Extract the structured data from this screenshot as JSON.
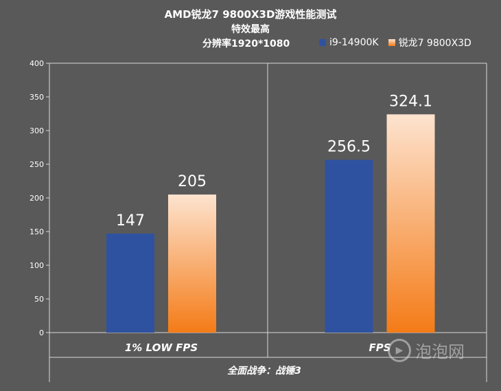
{
  "chart_data": {
    "type": "bar",
    "title_line1": "AMD锐龙7 9800X3D游戏性能测试",
    "title_line2": "特效最高",
    "title_line3": "分辨率1920*1080",
    "categories": [
      "1% LOW FPS",
      "FPS"
    ],
    "series": [
      {
        "name": "i9-14900K",
        "values": [
          147,
          256.5
        ],
        "color": "#2f52a0"
      },
      {
        "name": "锐龙7 9800X3D",
        "values": [
          205,
          324.1
        ],
        "color_top": "#fde3cf",
        "color_bottom": "#f47b17"
      }
    ],
    "ylim": [
      0,
      400
    ],
    "yticks": [
      "0",
      "50",
      "100",
      "150",
      "200",
      "250",
      "300",
      "350",
      "400"
    ],
    "xlabel": "全面战争：战锤3",
    "value_labels": [
      [
        "147",
        "256.5"
      ],
      [
        "205",
        "324.1"
      ]
    ],
    "grid": false,
    "legend_position": "top-right"
  },
  "watermark": {
    "text": "泡泡网",
    "icon": "play-circle-icon"
  }
}
